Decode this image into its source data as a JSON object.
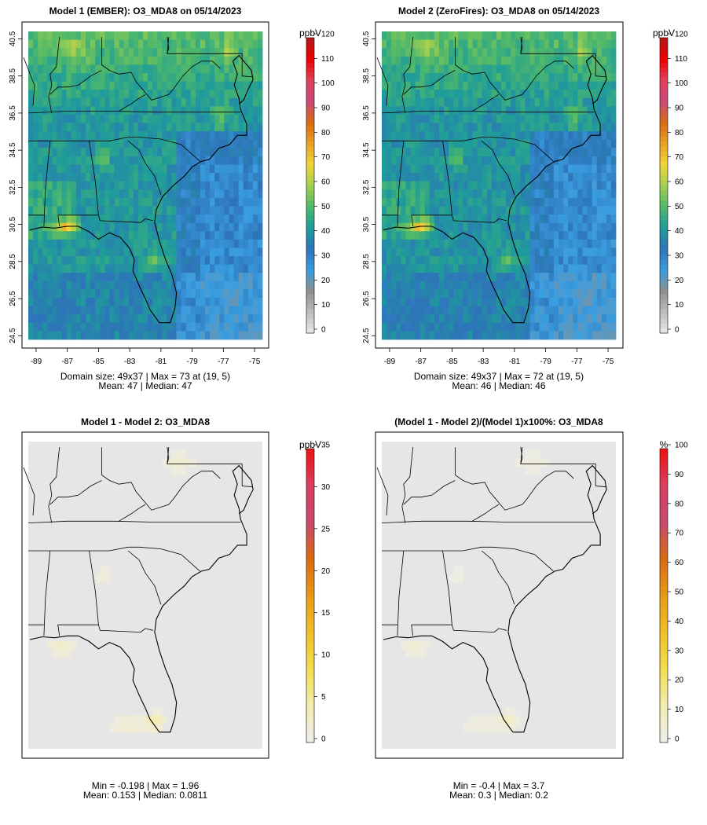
{
  "chart_data": [
    {
      "type": "heatmap",
      "title": "Model 1 (EMBER): O3_MDA8 on 05/14/2023",
      "xticks": [
        "-89",
        "-87",
        "-85",
        "-83",
        "-81",
        "-79",
        "-77",
        "-75"
      ],
      "yticks": [
        "24.5",
        "26.5",
        "28.5",
        "30.5",
        "32.5",
        "34.5",
        "36.5",
        "38.5",
        "40.5"
      ],
      "xlim": [
        -89.5,
        -74.5
      ],
      "ylim": [
        24.3,
        40.9
      ],
      "legend": {
        "unit": "ppbV",
        "min": 0,
        "max": 120,
        "ticks": [
          "0",
          "10",
          "20",
          "30",
          "40",
          "50",
          "60",
          "70",
          "80",
          "90",
          "100",
          "110",
          "120"
        ]
      },
      "stats": [
        "Domain size: 49x37 | Max = 73 at (19, 5)",
        "Mean: 47 |  Median: 47"
      ],
      "domain_size": "49x37",
      "max": 73,
      "max_location": "(19, 5)",
      "mean": 47,
      "median": 47,
      "fill": "concentration"
    },
    {
      "type": "heatmap",
      "title": "Model 2 (ZeroFires): O3_MDA8 on 05/14/2023",
      "xticks": [
        "-89",
        "-87",
        "-85",
        "-83",
        "-81",
        "-79",
        "-77",
        "-75"
      ],
      "yticks": [
        "24.5",
        "26.5",
        "28.5",
        "30.5",
        "32.5",
        "34.5",
        "36.5",
        "38.5",
        "40.5"
      ],
      "xlim": [
        -89.5,
        -74.5
      ],
      "ylim": [
        24.3,
        40.9
      ],
      "legend": {
        "unit": "ppbV",
        "min": 0,
        "max": 120,
        "ticks": [
          "0",
          "10",
          "20",
          "30",
          "40",
          "50",
          "60",
          "70",
          "80",
          "90",
          "100",
          "110",
          "120"
        ]
      },
      "stats": [
        "Domain size: 49x37 | Max = 72 at (19, 5)",
        "Mean: 46 |  Median: 46"
      ],
      "domain_size": "49x37",
      "max": 72,
      "max_location": "(19, 5)",
      "mean": 46,
      "median": 46,
      "fill": "concentration"
    },
    {
      "type": "heatmap",
      "title": "Model 1 - Model 2: O3_MDA8",
      "xticks": [],
      "yticks": [],
      "xlim": [
        -89.5,
        -74.5
      ],
      "ylim": [
        24.3,
        40.9
      ],
      "legend": {
        "unit": "ppbV",
        "min": 0,
        "max": 35,
        "ticks": [
          "0",
          "5",
          "10",
          "15",
          "20",
          "25",
          "30",
          "35"
        ]
      },
      "stats": [
        "Min = -0.198 | Max = 1.96",
        "Mean: 0.153 |  Median: 0.0811"
      ],
      "min": -0.198,
      "max": 1.96,
      "mean": 0.153,
      "median": 0.0811,
      "fill": "difference"
    },
    {
      "type": "heatmap",
      "title": "(Model 1 - Model 2)/(Model 1)x100%: O3_MDA8",
      "xticks": [],
      "yticks": [],
      "xlim": [
        -89.5,
        -74.5
      ],
      "ylim": [
        24.3,
        40.9
      ],
      "legend": {
        "unit": "%",
        "min": 0,
        "max": 100,
        "ticks": [
          "0",
          "10",
          "20",
          "30",
          "40",
          "50",
          "60",
          "70",
          "80",
          "90",
          "100"
        ]
      },
      "stats": [
        "Min = -0.4 | Max = 3.7",
        "Mean: 0.3 |  Median: 0.2"
      ],
      "min": -0.4,
      "max": 3.7,
      "mean": 0.3,
      "median": 0.2,
      "fill": "percent"
    }
  ],
  "colors": {
    "conc_scale": [
      "#e8e8e8",
      "#bdbdbd",
      "#8f8f8f",
      "#3a9ee0",
      "#2d74b8",
      "#1f9c9a",
      "#4fb86a",
      "#a3cf4f",
      "#f0d43a",
      "#e8a224",
      "#d96b12",
      "#c94a7a",
      "#e0405a",
      "#f00000",
      "#b51a1a"
    ],
    "diff_scale": [
      "#ececec",
      "#f3ecb0",
      "#f2de4e",
      "#f0c02a",
      "#e89a18",
      "#d96b12",
      "#c8496e",
      "#d94060",
      "#f01010"
    ],
    "pct_scale": [
      "#ececec",
      "#f3ecb0",
      "#f2de4e",
      "#f0c02a",
      "#e89a18",
      "#d96b12",
      "#c8496e",
      "#d94060",
      "#f01010"
    ],
    "diff_background": "#e6e6e6"
  }
}
